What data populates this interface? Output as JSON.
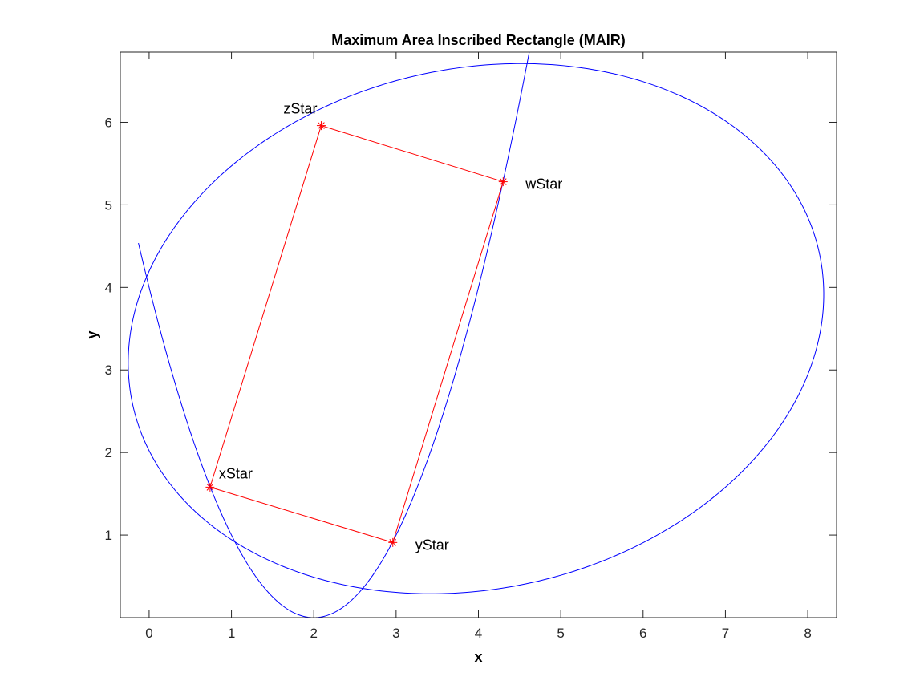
{
  "chart_data": {
    "type": "line",
    "title": "Maximum Area Inscribed Rectangle (MAIR)",
    "xlabel": "x",
    "ylabel": "y",
    "xlim": [
      -0.35,
      8.35
    ],
    "ylim": [
      0,
      6.85
    ],
    "xticks": [
      0,
      1,
      2,
      3,
      4,
      5,
      6,
      7,
      8
    ],
    "yticks": [
      1,
      2,
      3,
      4,
      5,
      6
    ],
    "grid": false,
    "box": true,
    "colors": {
      "curves": "#0000ff",
      "rectangle": "#ff0000",
      "axes": "#262626"
    },
    "ellipse": {
      "center": [
        3.97,
        3.5
      ],
      "semi_axes": [
        4.27,
        3.15
      ],
      "rotation_deg": 12.5,
      "color": "#0000ff"
    },
    "parabola": {
      "equation": "y = (x - 2)^2",
      "x_range": [
        -0.13,
        4.62
      ],
      "color": "#0000ff"
    },
    "rectangle": {
      "color": "#ff0000",
      "marker": "*",
      "order": [
        "xStar",
        "yStar",
        "wStar",
        "zStar"
      ],
      "points": [
        {
          "label": "xStar",
          "x": 0.74,
          "y": 1.58,
          "label_pos": "upper-right"
        },
        {
          "label": "yStar",
          "x": 2.96,
          "y": 0.91,
          "label_pos": "right"
        },
        {
          "label": "wStar",
          "x": 4.3,
          "y": 5.28,
          "label_pos": "right"
        },
        {
          "label": "zStar",
          "x": 2.09,
          "y": 5.96,
          "label_pos": "upper-left"
        }
      ]
    }
  }
}
